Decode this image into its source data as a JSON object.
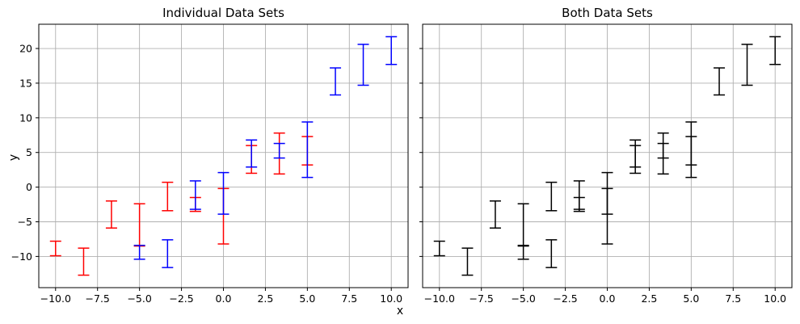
{
  "chart_data": {
    "type": "errorbar",
    "shared_x_label": "x",
    "shared_y_label": "y",
    "xlim": [
      -11,
      11
    ],
    "ylim": [
      -14.5,
      23.5
    ],
    "x_ticks": [
      -10.0,
      -7.5,
      -5.0,
      -2.5,
      0.0,
      2.5,
      5.0,
      7.5,
      10.0
    ],
    "x_tick_labels": [
      "−10.0",
      "−7.5",
      "−5.0",
      "−2.5",
      "0.0",
      "2.5",
      "5.0",
      "7.5",
      "10.0"
    ],
    "y_ticks": [
      -10,
      -5,
      0,
      5,
      10,
      15,
      20
    ],
    "y_tick_labels": [
      "−10",
      "−5",
      "0",
      "5",
      "10",
      "15",
      "20"
    ],
    "grid": true,
    "panels": [
      {
        "title": "Individual Data Sets",
        "series": [
          {
            "color": "#ff0000",
            "points": [
              {
                "x": -10.0,
                "low": -9.9,
                "high": -7.8
              },
              {
                "x": -8.33,
                "low": -12.7,
                "high": -8.8
              },
              {
                "x": -6.67,
                "low": -5.9,
                "high": -2.0
              },
              {
                "x": -5.0,
                "low": -8.5,
                "high": -2.4
              },
              {
                "x": -3.33,
                "low": -3.4,
                "high": 0.7
              },
              {
                "x": -1.67,
                "low": -3.5,
                "high": -1.5
              },
              {
                "x": 0.0,
                "low": -8.2,
                "high": -0.2
              },
              {
                "x": 1.67,
                "low": 2.0,
                "high": 6.0
              },
              {
                "x": 3.33,
                "low": 1.9,
                "high": 7.8
              },
              {
                "x": 5.0,
                "low": 3.2,
                "high": 7.3
              }
            ]
          },
          {
            "color": "#0000ff",
            "points": [
              {
                "x": -5.0,
                "low": -10.4,
                "high": -8.4
              },
              {
                "x": -3.33,
                "low": -11.6,
                "high": -7.6
              },
              {
                "x": -1.67,
                "low": -3.2,
                "high": 0.9
              },
              {
                "x": 0.0,
                "low": -3.9,
                "high": 2.1
              },
              {
                "x": 1.67,
                "low": 2.9,
                "high": 6.8
              },
              {
                "x": 3.33,
                "low": 4.2,
                "high": 6.3
              },
              {
                "x": 5.0,
                "low": 1.4,
                "high": 9.4
              },
              {
                "x": 6.67,
                "low": 13.3,
                "high": 17.2
              },
              {
                "x": 8.33,
                "low": 14.7,
                "high": 20.6
              },
              {
                "x": 10.0,
                "low": 17.7,
                "high": 21.7
              }
            ]
          }
        ]
      },
      {
        "title": "Both Data Sets",
        "series": [
          {
            "color": "#000000",
            "points": [
              {
                "x": -10.0,
                "low": -9.9,
                "high": -7.8
              },
              {
                "x": -8.33,
                "low": -12.7,
                "high": -8.8
              },
              {
                "x": -6.67,
                "low": -5.9,
                "high": -2.0
              },
              {
                "x": -5.0,
                "low": -8.5,
                "high": -2.4
              },
              {
                "x": -3.33,
                "low": -3.4,
                "high": 0.7
              },
              {
                "x": -1.67,
                "low": -3.5,
                "high": -1.5
              },
              {
                "x": 0.0,
                "low": -8.2,
                "high": -0.2
              },
              {
                "x": 1.67,
                "low": 2.0,
                "high": 6.0
              },
              {
                "x": 3.33,
                "low": 1.9,
                "high": 7.8
              },
              {
                "x": 5.0,
                "low": 3.2,
                "high": 7.3
              },
              {
                "x": -5.0,
                "low": -10.4,
                "high": -8.4
              },
              {
                "x": -3.33,
                "low": -11.6,
                "high": -7.6
              },
              {
                "x": -1.67,
                "low": -3.2,
                "high": 0.9
              },
              {
                "x": 0.0,
                "low": -3.9,
                "high": 2.1
              },
              {
                "x": 1.67,
                "low": 2.9,
                "high": 6.8
              },
              {
                "x": 3.33,
                "low": 4.2,
                "high": 6.3
              },
              {
                "x": 5.0,
                "low": 1.4,
                "high": 9.4
              },
              {
                "x": 6.67,
                "low": 13.3,
                "high": 17.2
              },
              {
                "x": 8.33,
                "low": 14.7,
                "high": 20.6
              },
              {
                "x": 10.0,
                "low": 17.7,
                "high": 21.7
              }
            ]
          }
        ]
      }
    ],
    "colors": {
      "grid": "#b0b0b0",
      "axes": "#000000"
    }
  }
}
